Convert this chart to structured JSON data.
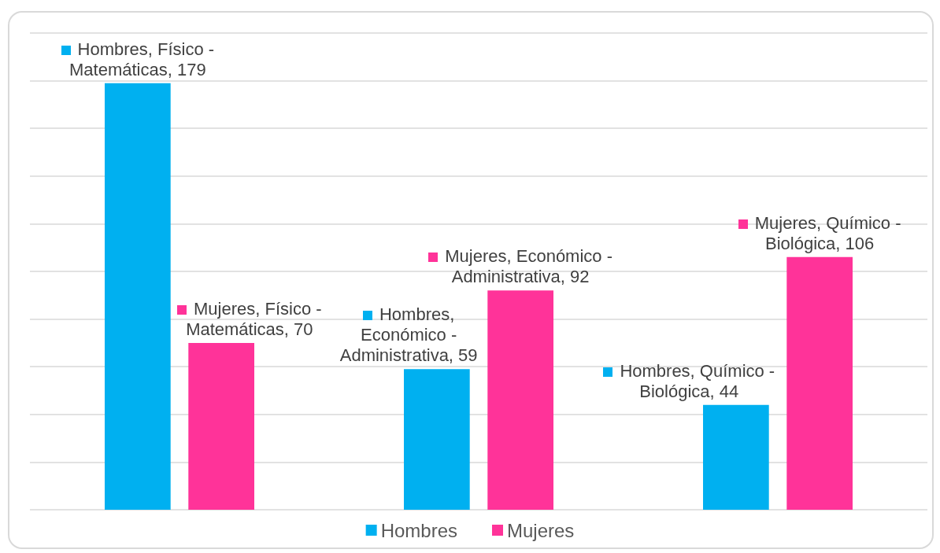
{
  "chart_data": {
    "type": "bar",
    "categories": [
      null,
      null,
      null
    ],
    "series": [
      {
        "name": "Hombres",
        "color": "#00b0f0",
        "values": [
          179,
          59,
          44
        ],
        "value_labels": [
          "Hombres, Físico - Matemáticas, 179",
          "Hombres, Económico - Administrativa, 59",
          "Hombres, Químico - Biológica, 44"
        ]
      },
      {
        "name": "Mujeres",
        "color": "#ff3399",
        "values": [
          70,
          92,
          106
        ],
        "value_labels": [
          "Mujeres, Físico - Matemáticas, 70",
          "Mujeres, Económico - Administrativa, 92",
          "Mujeres, Químico - Biológica, 106"
        ]
      }
    ],
    "ylim": [
      0,
      200
    ],
    "yticks": [
      0,
      20,
      40,
      60,
      80,
      100,
      120,
      140,
      160,
      180,
      200
    ],
    "grid": "y",
    "legend": "bottom",
    "tick_labels": false
  }
}
